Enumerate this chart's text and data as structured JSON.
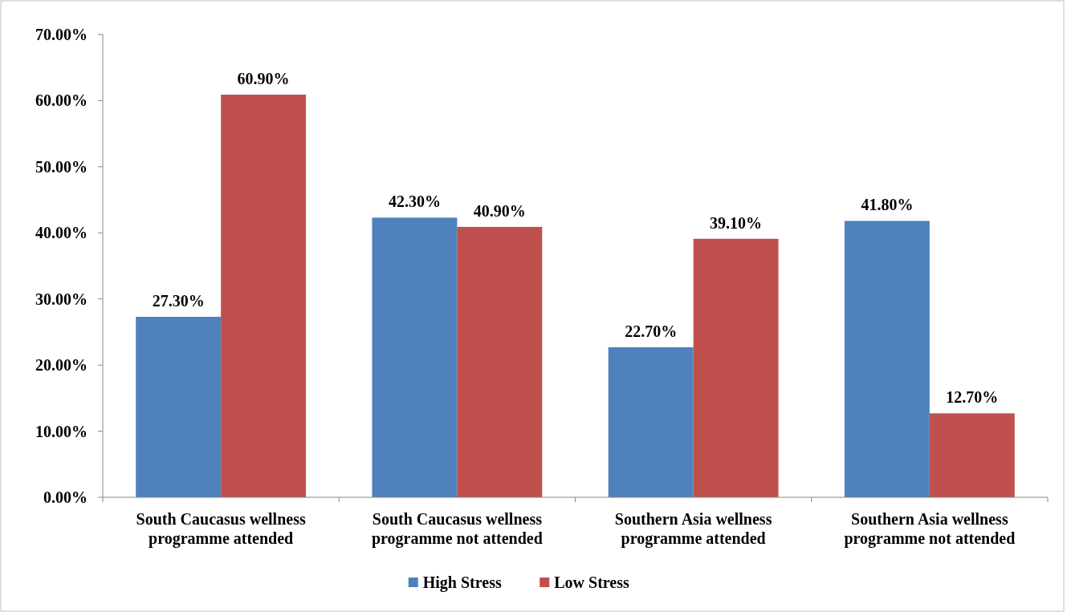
{
  "chart_data": {
    "type": "bar",
    "categories": [
      "South Caucasus wellness programme attended",
      "South Caucasus wellness programme not attended",
      "Southern Asia wellness programme attended",
      "Southern Asia wellness programme not attended"
    ],
    "series": [
      {
        "name": "High Stress",
        "color": "#4f81bd",
        "values": [
          27.3,
          42.3,
          22.7,
          41.8
        ],
        "value_labels": [
          "27.30%",
          "42.30%",
          "22.70%",
          "41.80%"
        ]
      },
      {
        "name": "Low Stress",
        "color": "#c0504d",
        "values": [
          60.9,
          40.9,
          39.1,
          12.7
        ],
        "value_labels": [
          "60.90%",
          "40.90%",
          "39.10%",
          "12.70%"
        ]
      }
    ],
    "ylim": [
      0,
      70
    ],
    "yticks": [
      {
        "value": 0,
        "label": "0.00%"
      },
      {
        "value": 10,
        "label": "10.00%"
      },
      {
        "value": 20,
        "label": "20.00%"
      },
      {
        "value": 30,
        "label": "30.00%"
      },
      {
        "value": 40,
        "label": "40.00%"
      },
      {
        "value": 50,
        "label": "50.00%"
      },
      {
        "value": 60,
        "label": "60.00%"
      },
      {
        "value": 70,
        "label": "70.00%"
      }
    ],
    "grid": false,
    "legend": "bottom"
  }
}
